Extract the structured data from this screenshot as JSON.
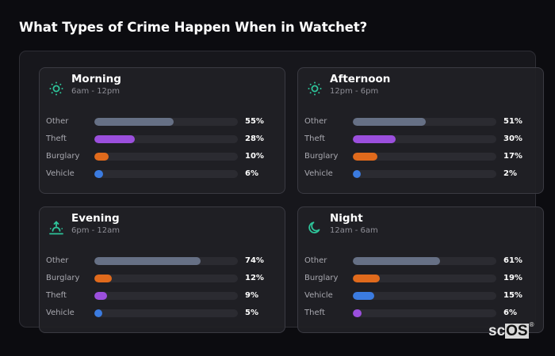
{
  "page": {
    "title": "What Types of Crime Happen When in Watchet?"
  },
  "brand": {
    "prefix": "sc",
    "highlight": "OS",
    "registered": "®"
  },
  "colors": {
    "Other": "#667085",
    "Theft": "#9b4fdd",
    "Burglary": "#e06a1c",
    "Vehicle": "#3b7be0",
    "icon_accent": "#2ec49a"
  },
  "cards": [
    {
      "title": "Morning",
      "subtitle": "6am - 12pm",
      "icon": "sun-icon",
      "rows": [
        {
          "label": "Other",
          "value": 55,
          "display": "55%"
        },
        {
          "label": "Theft",
          "value": 28,
          "display": "28%"
        },
        {
          "label": "Burglary",
          "value": 10,
          "display": "10%"
        },
        {
          "label": "Vehicle",
          "value": 6,
          "display": "6%"
        }
      ]
    },
    {
      "title": "Afternoon",
      "subtitle": "12pm - 6pm",
      "icon": "sun-icon",
      "rows": [
        {
          "label": "Other",
          "value": 51,
          "display": "51%"
        },
        {
          "label": "Theft",
          "value": 30,
          "display": "30%"
        },
        {
          "label": "Burglary",
          "value": 17,
          "display": "17%"
        },
        {
          "label": "Vehicle",
          "value": 2,
          "display": "2%"
        }
      ]
    },
    {
      "title": "Evening",
      "subtitle": "6pm - 12am",
      "icon": "sunset-icon",
      "rows": [
        {
          "label": "Other",
          "value": 74,
          "display": "74%"
        },
        {
          "label": "Burglary",
          "value": 12,
          "display": "12%"
        },
        {
          "label": "Theft",
          "value": 9,
          "display": "9%"
        },
        {
          "label": "Vehicle",
          "value": 5,
          "display": "5%"
        }
      ]
    },
    {
      "title": "Night",
      "subtitle": "12am - 6am",
      "icon": "moon-icon",
      "rows": [
        {
          "label": "Other",
          "value": 61,
          "display": "61%"
        },
        {
          "label": "Burglary",
          "value": 19,
          "display": "19%"
        },
        {
          "label": "Vehicle",
          "value": 15,
          "display": "15%"
        },
        {
          "label": "Theft",
          "value": 6,
          "display": "6%"
        }
      ]
    }
  ],
  "chart_data": [
    {
      "type": "bar",
      "orientation": "horizontal",
      "title": "Morning",
      "subtitle": "6am - 12pm",
      "categories": [
        "Other",
        "Theft",
        "Burglary",
        "Vehicle"
      ],
      "values": [
        55,
        28,
        10,
        6
      ],
      "unit": "%",
      "xlim": [
        0,
        100
      ]
    },
    {
      "type": "bar",
      "orientation": "horizontal",
      "title": "Afternoon",
      "subtitle": "12pm - 6pm",
      "categories": [
        "Other",
        "Theft",
        "Burglary",
        "Vehicle"
      ],
      "values": [
        51,
        30,
        17,
        2
      ],
      "unit": "%",
      "xlim": [
        0,
        100
      ]
    },
    {
      "type": "bar",
      "orientation": "horizontal",
      "title": "Evening",
      "subtitle": "6pm - 12am",
      "categories": [
        "Other",
        "Burglary",
        "Theft",
        "Vehicle"
      ],
      "values": [
        74,
        12,
        9,
        5
      ],
      "unit": "%",
      "xlim": [
        0,
        100
      ]
    },
    {
      "type": "bar",
      "orientation": "horizontal",
      "title": "Night",
      "subtitle": "12am - 6am",
      "categories": [
        "Other",
        "Burglary",
        "Vehicle",
        "Theft"
      ],
      "values": [
        61,
        19,
        15,
        6
      ],
      "unit": "%",
      "xlim": [
        0,
        100
      ]
    }
  ]
}
